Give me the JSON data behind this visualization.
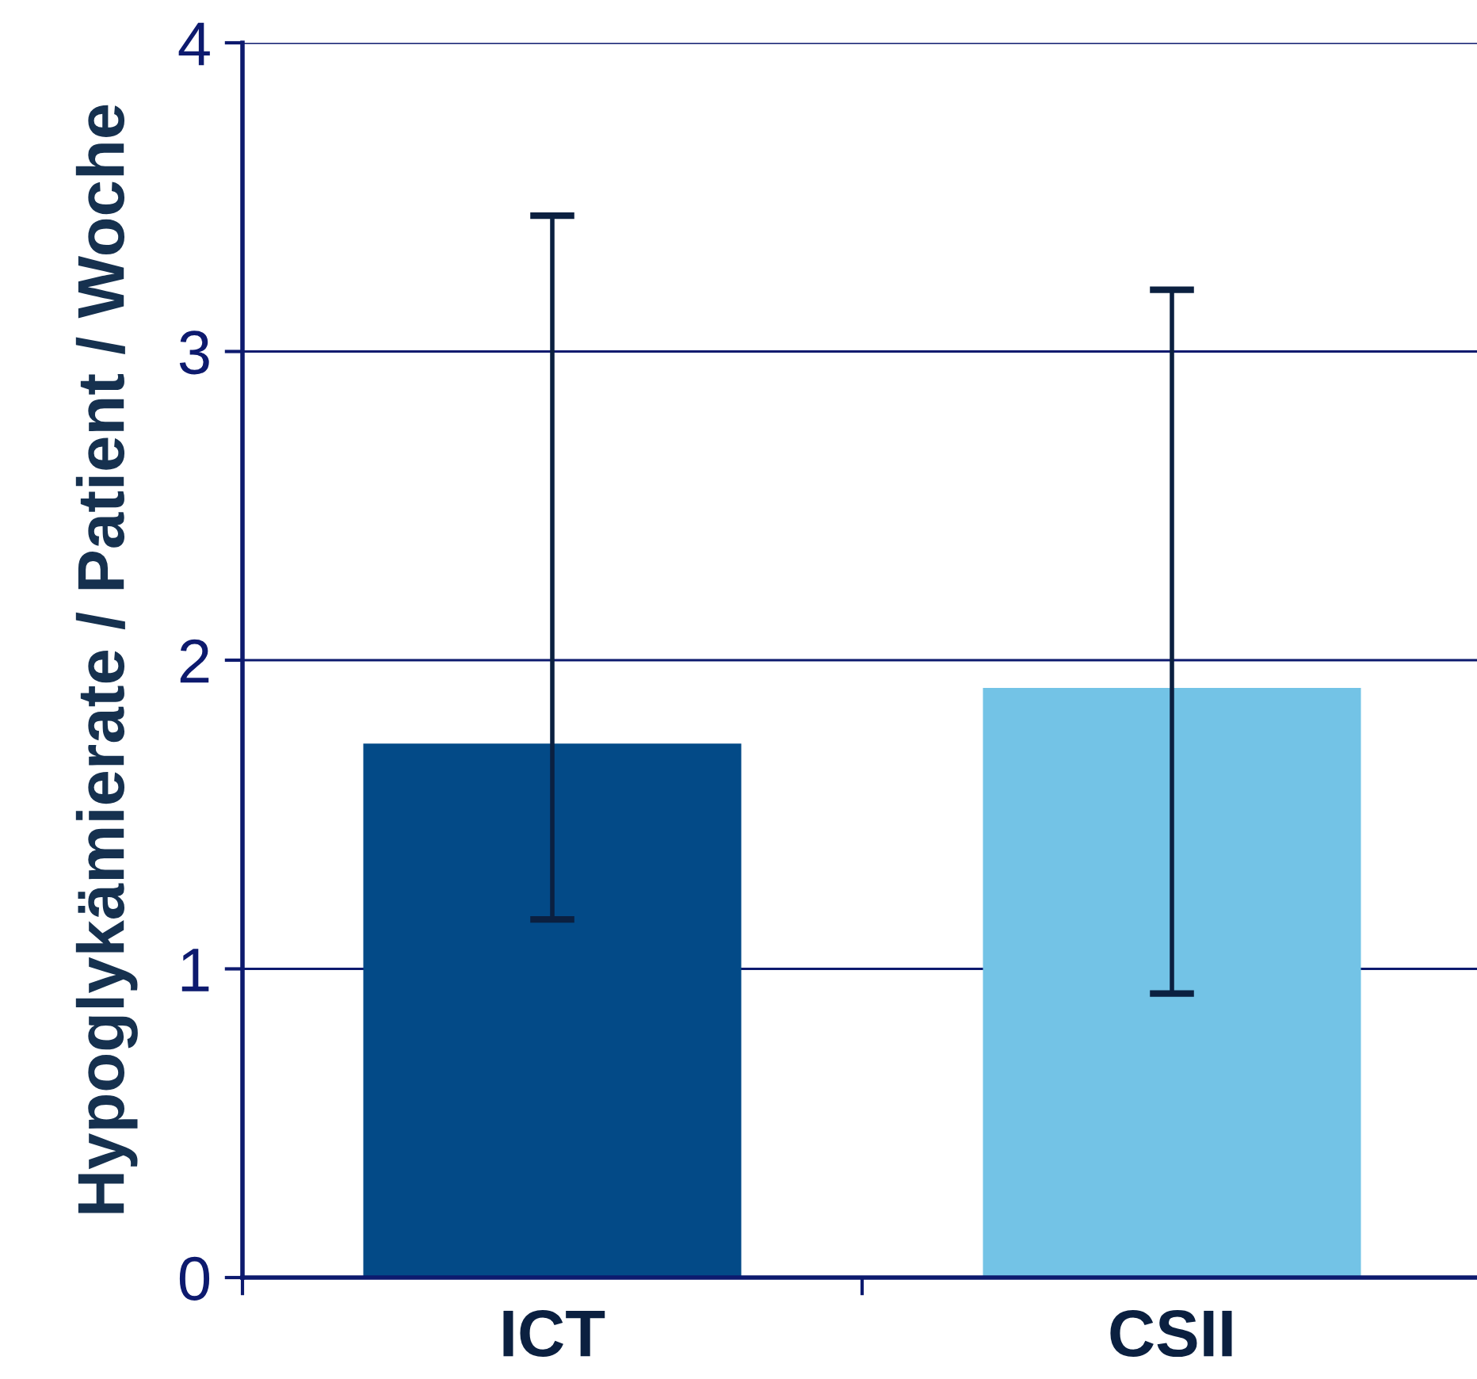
{
  "chart_data": {
    "type": "bar",
    "ylabel": "Hypoglykämierate / Patient / Woche",
    "categories": [
      "ICT",
      "CSII"
    ],
    "values": [
      1.73,
      1.91
    ],
    "colors": [
      "#034a87",
      "#73c3e6"
    ],
    "errors": [
      [
        1.16,
        3.44
      ],
      [
        0.92,
        3.2
      ]
    ],
    "ylim": [
      0,
      4
    ],
    "yticks": [
      0,
      1,
      2,
      3,
      4
    ],
    "grid": "y"
  }
}
